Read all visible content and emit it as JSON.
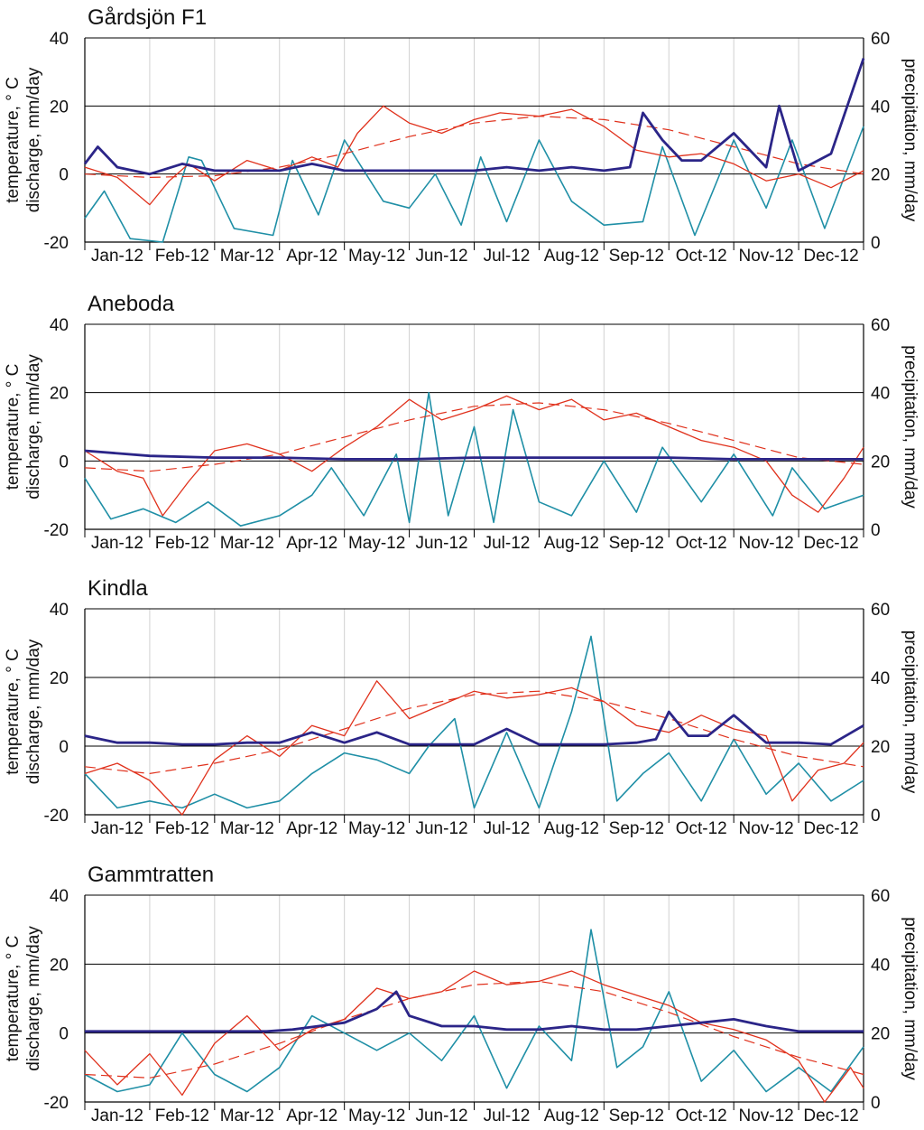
{
  "figure": {
    "left_axis_label_line1": "temperature, ° C",
    "left_axis_label_line2": "discharge, mm/day",
    "right_axis_label": "precipitation, mm/day"
  },
  "colors": {
    "temperature": "#e0311c",
    "temperature_trend": "#e0311c",
    "discharge": "#2b2588",
    "precipitation": "#1f8fa6",
    "gridline": "#d0d0d0",
    "axis": "#000000"
  },
  "chart_data": [
    {
      "type": "line",
      "title": "Gårdsjön F1",
      "months": [
        "Jan-12",
        "Feb-12",
        "Mar-12",
        "Apr-12",
        "May-12",
        "Jun-12",
        "Jul-12",
        "Aug-12",
        "Sep-12",
        "Oct-12",
        "Nov-12",
        "Dec-12"
      ],
      "left_ylim": [
        -20,
        40
      ],
      "left_yticks": [
        -20,
        0,
        20,
        40
      ],
      "right_ylim": [
        0,
        60
      ],
      "right_yticks": [
        0,
        20,
        40,
        60
      ],
      "series": [
        {
          "name": "temperature",
          "axis": "left",
          "x": [
            0,
            0.5,
            1,
            1.3,
            1.6,
            2,
            2.5,
            3,
            3.5,
            3.9,
            4.2,
            4.6,
            5,
            5.5,
            6,
            6.4,
            7,
            7.5,
            8,
            8.5,
            9,
            9.5,
            10,
            10.5,
            11,
            11.5,
            12
          ],
          "values": [
            2,
            -1,
            -9,
            -2,
            3,
            -2,
            4,
            1,
            5,
            2,
            12,
            20,
            15,
            12,
            16,
            18,
            17,
            19,
            14,
            7,
            5,
            6,
            3,
            -2,
            0,
            -4,
            1
          ]
        },
        {
          "name": "temperature trend",
          "axis": "left",
          "x": [
            0,
            1,
            2,
            3,
            4,
            5,
            6,
            7,
            8,
            9,
            10,
            11,
            12
          ],
          "values": [
            0,
            -1,
            -0.5,
            2,
            6,
            11,
            15,
            17,
            16,
            13,
            8,
            3,
            0
          ]
        },
        {
          "name": "discharge",
          "axis": "left",
          "x": [
            0,
            0.2,
            0.5,
            1,
            1.5,
            2,
            2.5,
            3,
            3.5,
            4,
            4.5,
            5,
            5.5,
            6,
            6.5,
            7,
            7.5,
            8,
            8.4,
            8.6,
            8.9,
            9.2,
            9.5,
            10,
            10.5,
            10.7,
            11,
            11.5,
            12
          ],
          "values": [
            3,
            8,
            2,
            0,
            3,
            1,
            1,
            1,
            3,
            1,
            1,
            1,
            1,
            1,
            2,
            1,
            2,
            1,
            2,
            18,
            10,
            4,
            4,
            12,
            2,
            20,
            1,
            6,
            34
          ]
        },
        {
          "name": "precipitation",
          "axis": "right",
          "x": [
            0,
            0.3,
            0.7,
            1.2,
            1.6,
            1.8,
            2.3,
            2.9,
            3.2,
            3.6,
            4,
            4.6,
            5,
            5.4,
            5.8,
            6.1,
            6.5,
            7,
            7.5,
            8,
            8.6,
            8.9,
            9.4,
            10,
            10.5,
            10.9,
            11.4,
            12
          ],
          "values": [
            7,
            15,
            1,
            0,
            25,
            24,
            4,
            2,
            24,
            8,
            30,
            12,
            10,
            20,
            5,
            25,
            6,
            30,
            12,
            5,
            6,
            28,
            2,
            30,
            10,
            30,
            4,
            34
          ]
        }
      ]
    },
    {
      "type": "line",
      "title": "Aneboda",
      "months": [
        "Jan-12",
        "Feb-12",
        "Mar-12",
        "Apr-12",
        "May-12",
        "Jun-12",
        "Jul-12",
        "Aug-12",
        "Sep-12",
        "Oct-12",
        "Nov-12",
        "Dec-12"
      ],
      "left_ylim": [
        -20,
        40
      ],
      "left_yticks": [
        -20,
        0,
        20,
        40
      ],
      "right_ylim": [
        0,
        60
      ],
      "right_yticks": [
        0,
        20,
        40,
        60
      ],
      "series": [
        {
          "name": "temperature",
          "axis": "left",
          "x": [
            0,
            0.5,
            0.9,
            1.2,
            1.6,
            2,
            2.5,
            3,
            3.5,
            4,
            4.5,
            5,
            5.5,
            6,
            6.5,
            7,
            7.5,
            8,
            8.5,
            9,
            9.5,
            10,
            10.5,
            10.9,
            11.3,
            11.7,
            12
          ],
          "values": [
            3,
            -3,
            -5,
            -16,
            -6,
            3,
            5,
            2,
            -3,
            4,
            10,
            18,
            12,
            15,
            19,
            15,
            18,
            12,
            14,
            10,
            6,
            4,
            0,
            -10,
            -15,
            -5,
            4
          ]
        },
        {
          "name": "temperature trend",
          "axis": "left",
          "x": [
            0,
            1,
            2,
            3,
            4,
            5,
            6,
            7,
            8,
            9,
            10,
            11,
            12
          ],
          "values": [
            -2,
            -3,
            -1,
            2,
            7,
            12,
            16,
            17,
            15,
            11,
            6,
            1,
            -1
          ]
        },
        {
          "name": "discharge",
          "axis": "left",
          "x": [
            0,
            1,
            2,
            3,
            4,
            5,
            6,
            7,
            8,
            9,
            10,
            11,
            12
          ],
          "values": [
            3,
            1.5,
            1,
            1,
            0.5,
            0.5,
            1,
            1,
            1,
            1,
            0.5,
            0.5,
            0.5
          ]
        },
        {
          "name": "precipitation",
          "axis": "right",
          "x": [
            0,
            0.4,
            0.9,
            1.4,
            1.9,
            2.4,
            3,
            3.5,
            3.8,
            4.3,
            4.8,
            5,
            5.3,
            5.6,
            6,
            6.3,
            6.6,
            7,
            7.5,
            8,
            8.5,
            8.9,
            9.5,
            10,
            10.6,
            10.9,
            11.4,
            12
          ],
          "values": [
            15,
            3,
            6,
            2,
            8,
            1,
            4,
            10,
            18,
            4,
            22,
            2,
            40,
            4,
            30,
            2,
            35,
            8,
            4,
            20,
            5,
            24,
            8,
            22,
            4,
            18,
            6,
            10
          ]
        }
      ]
    },
    {
      "type": "line",
      "title": "Kindla",
      "months": [
        "Jan-12",
        "Feb-12",
        "Mar-12",
        "Apr-12",
        "May-12",
        "Jun-12",
        "Jul-12",
        "Aug-12",
        "Sep-12",
        "Oct-12",
        "Nov-12",
        "Dec-12"
      ],
      "left_ylim": [
        -20,
        40
      ],
      "left_yticks": [
        -20,
        0,
        20,
        40
      ],
      "right_ylim": [
        0,
        60
      ],
      "right_yticks": [
        0,
        20,
        40,
        60
      ],
      "series": [
        {
          "name": "temperature",
          "axis": "left",
          "x": [
            0,
            0.5,
            1,
            1.5,
            2,
            2.5,
            3,
            3.5,
            4,
            4.5,
            5,
            5.5,
            6,
            6.5,
            7,
            7.5,
            8,
            8.5,
            9,
            9.5,
            10,
            10.5,
            10.9,
            11.3,
            11.7,
            12
          ],
          "values": [
            -8,
            -5,
            -10,
            -20,
            -4,
            3,
            -3,
            6,
            3,
            19,
            8,
            12,
            16,
            14,
            15,
            17,
            13,
            6,
            4,
            9,
            5,
            3,
            -16,
            -7,
            -5,
            1
          ]
        },
        {
          "name": "temperature trend",
          "axis": "left",
          "x": [
            0,
            1,
            2,
            3,
            4,
            5,
            6,
            7,
            8,
            9,
            10,
            11,
            12
          ],
          "values": [
            -6,
            -8,
            -5,
            -1,
            5,
            11,
            15,
            16,
            13,
            8,
            2,
            -3,
            -6
          ]
        },
        {
          "name": "discharge",
          "axis": "left",
          "x": [
            0,
            0.5,
            1,
            1.5,
            2,
            2.5,
            3,
            3.5,
            4,
            4.5,
            5,
            5.5,
            6,
            6.5,
            7,
            7.5,
            8,
            8.5,
            8.8,
            9,
            9.3,
            9.6,
            10,
            10.5,
            11,
            11.5,
            12
          ],
          "values": [
            3,
            1,
            1,
            0.5,
            0.5,
            1,
            1,
            4,
            1,
            4,
            0.5,
            0.5,
            0.5,
            5,
            0.5,
            0.5,
            0.5,
            1,
            2,
            10,
            3,
            3,
            9,
            1,
            1,
            0.5,
            6
          ]
        },
        {
          "name": "precipitation",
          "axis": "right",
          "x": [
            0,
            0.5,
            1,
            1.5,
            2,
            2.5,
            3,
            3.5,
            4,
            4.5,
            5,
            5.3,
            5.7,
            6,
            6.5,
            7,
            7.5,
            7.8,
            8.2,
            8.6,
            9,
            9.5,
            10,
            10.5,
            11,
            11.5,
            12
          ],
          "values": [
            12,
            2,
            4,
            2,
            6,
            2,
            4,
            12,
            18,
            16,
            12,
            20,
            28,
            2,
            24,
            2,
            30,
            52,
            4,
            12,
            18,
            4,
            22,
            6,
            15,
            4,
            10
          ]
        }
      ]
    },
    {
      "type": "line",
      "title": "Gammtratten",
      "months": [
        "Jan-12",
        "Feb-12",
        "Mar-12",
        "Apr-12",
        "May-12",
        "Jun-12",
        "Jul-12",
        "Aug-12",
        "Sep-12",
        "Oct-12",
        "Nov-12",
        "Dec-12"
      ],
      "left_ylim": [
        -20,
        40
      ],
      "left_yticks": [
        -20,
        0,
        20,
        40
      ],
      "right_ylim": [
        0,
        60
      ],
      "right_yticks": [
        0,
        20,
        40,
        60
      ],
      "series": [
        {
          "name": "temperature",
          "axis": "left",
          "x": [
            0,
            0.5,
            1,
            1.5,
            2,
            2.5,
            3,
            3.5,
            4,
            4.5,
            5,
            5.5,
            6,
            6.5,
            7,
            7.5,
            8,
            8.5,
            9,
            9.5,
            10,
            10.5,
            11,
            11.4,
            11.8,
            12
          ],
          "values": [
            -5,
            -15,
            -6,
            -18,
            -3,
            5,
            -5,
            1,
            4,
            13,
            10,
            12,
            18,
            14,
            15,
            18,
            14,
            11,
            8,
            3,
            1,
            -2,
            -8,
            -20,
            -10,
            -16
          ]
        },
        {
          "name": "temperature trend",
          "axis": "left",
          "x": [
            0,
            1,
            2,
            3,
            4,
            5,
            6,
            7,
            8,
            9,
            10,
            11,
            12
          ],
          "values": [
            -12,
            -13,
            -9,
            -3,
            4,
            10,
            14,
            15,
            12,
            6,
            -1,
            -7,
            -12
          ]
        },
        {
          "name": "discharge",
          "axis": "left",
          "x": [
            0,
            1,
            2,
            2.8,
            3.2,
            3.6,
            4,
            4.5,
            4.8,
            5,
            5.5,
            6,
            6.5,
            7,
            7.5,
            8,
            8.5,
            9,
            9.5,
            10,
            10.5,
            11,
            12
          ],
          "values": [
            0.5,
            0.5,
            0.5,
            0.5,
            1,
            2,
            3,
            7,
            12,
            5,
            2,
            2,
            1,
            1,
            2,
            1,
            1,
            2,
            3,
            4,
            2,
            0.5,
            0.5
          ]
        },
        {
          "name": "precipitation",
          "axis": "right",
          "x": [
            0,
            0.5,
            1,
            1.5,
            2,
            2.5,
            3,
            3.5,
            4,
            4.5,
            5,
            5.5,
            6,
            6.5,
            7,
            7.5,
            7.8,
            8.2,
            8.6,
            9,
            9.5,
            10,
            10.5,
            11,
            11.5,
            12
          ],
          "values": [
            8,
            3,
            5,
            20,
            8,
            3,
            10,
            25,
            20,
            15,
            20,
            12,
            25,
            4,
            22,
            12,
            50,
            10,
            16,
            32,
            6,
            15,
            3,
            10,
            3,
            16
          ]
        }
      ]
    }
  ]
}
